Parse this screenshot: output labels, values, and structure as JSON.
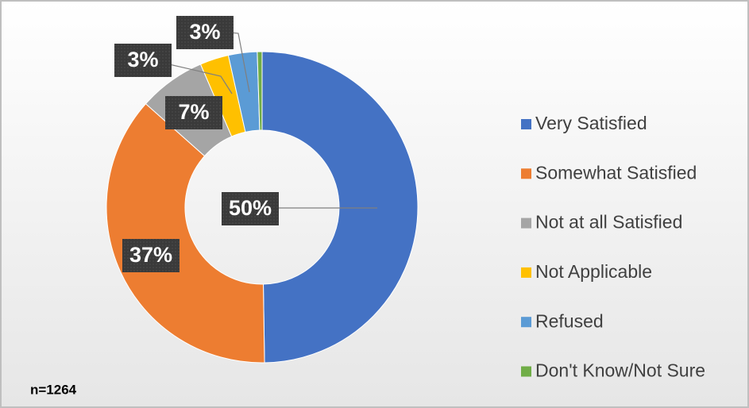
{
  "chart_data": {
    "type": "donut",
    "categories": [
      "Very Satisfied",
      "Somewhat Satisfied",
      "Not at all Satisfied",
      "Not Applicable",
      "Refused",
      "Don't Know/Not Sure"
    ],
    "values": [
      50,
      37,
      7,
      3,
      3,
      0.5
    ],
    "value_labels": [
      "50%",
      "37%",
      "7%",
      "3%",
      "3%",
      null
    ],
    "colors": [
      "#4472c4",
      "#ed7d31",
      "#a5a5a5",
      "#ffc000",
      "#5b9bd5",
      "#70ad47"
    ],
    "legend": "right",
    "annotation": "n=1264"
  }
}
